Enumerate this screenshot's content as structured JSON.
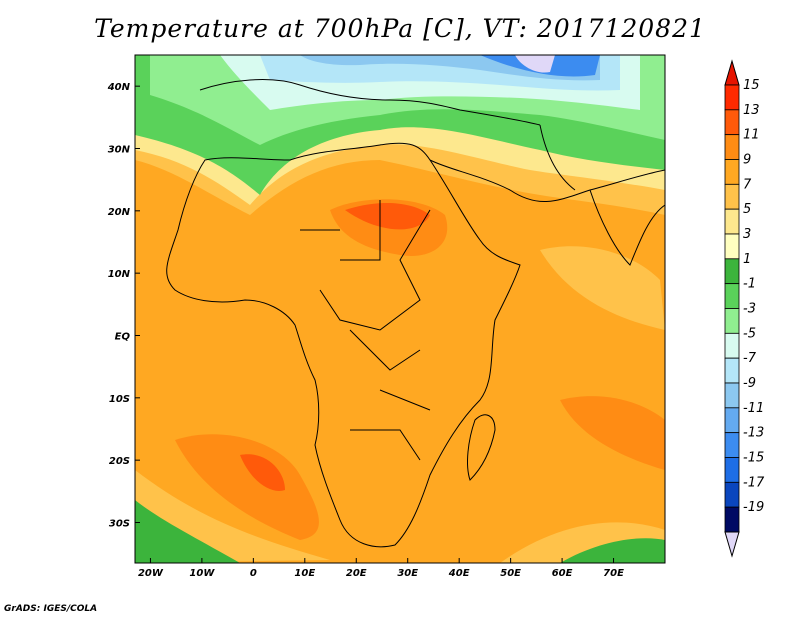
{
  "title": "Temperature at 700hPa [C], VT: 2017120821",
  "credit": "GrADS: IGES/COLA",
  "map": {
    "lon_range": [
      -23,
      80
    ],
    "lat_range": [
      -36.5,
      45
    ],
    "lon_ticks": [
      {
        "value": -20,
        "label": "20W"
      },
      {
        "value": -10,
        "label": "10W"
      },
      {
        "value": 0,
        "label": "0"
      },
      {
        "value": 10,
        "label": "10E"
      },
      {
        "value": 20,
        "label": "20E"
      },
      {
        "value": 30,
        "label": "30E"
      },
      {
        "value": 40,
        "label": "40E"
      },
      {
        "value": 50,
        "label": "50E"
      },
      {
        "value": 60,
        "label": "60E"
      },
      {
        "value": 70,
        "label": "70E"
      }
    ],
    "lat_ticks": [
      {
        "value": 40,
        "label": "40N"
      },
      {
        "value": 30,
        "label": "30N"
      },
      {
        "value": 20,
        "label": "20N"
      },
      {
        "value": 10,
        "label": "10N"
      },
      {
        "value": 0,
        "label": "EQ"
      },
      {
        "value": -10,
        "label": "10S"
      },
      {
        "value": -20,
        "label": "20S"
      },
      {
        "value": -30,
        "label": "30S"
      }
    ]
  },
  "colorbar": {
    "labels": [
      "15",
      "13",
      "11",
      "9",
      "7",
      "5",
      "3",
      "1",
      "-1",
      "-3",
      "-5",
      "-7",
      "-9",
      "-11",
      "-13",
      "-15",
      "-17",
      "-19"
    ],
    "colors": [
      "#ff2a00",
      "#ff5a0a",
      "#ff8c14",
      "#ffa822",
      "#ffc24a",
      "#fde88e",
      "#ffffc0",
      "#3cb43c",
      "#5ad25a",
      "#90ee90",
      "#d8fbf0",
      "#b4e6f8",
      "#8cc8f0",
      "#64aaf0",
      "#3c8cf0",
      "#1e6ee6",
      "#0a46be",
      "#000a64"
    ],
    "top_arrow_color": "#e61400",
    "bottom_arrow_color": "#e0d8f8"
  }
}
